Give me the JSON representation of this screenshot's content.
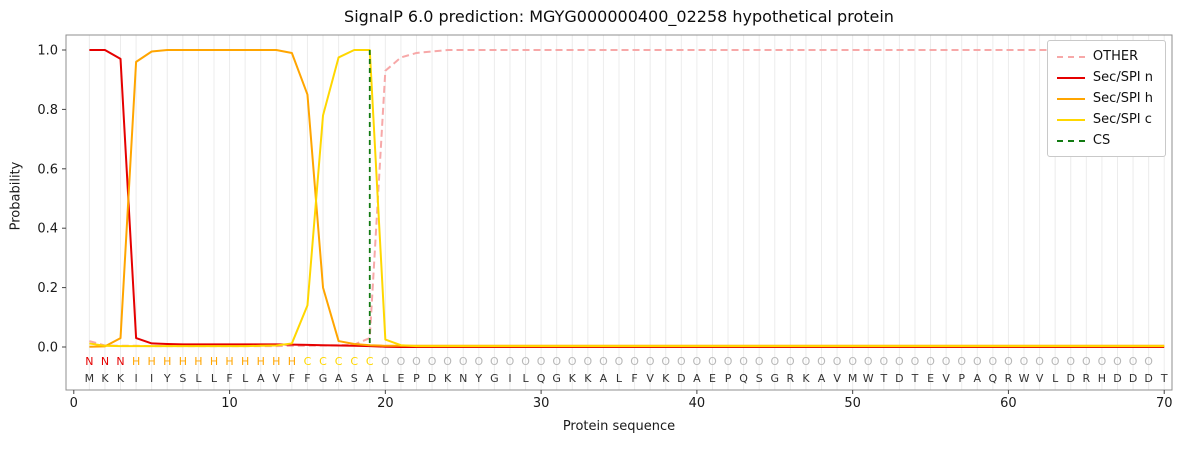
{
  "chart_data": {
    "type": "line",
    "title": "SignalP 6.0 prediction: MGYG000000400_02258 hypothetical protein",
    "xlabel": "Protein sequence",
    "ylabel": "Probability",
    "xlim": [
      -0.5,
      70.5
    ],
    "ylim": [
      0.0,
      1.05
    ],
    "xticks": [
      0,
      10,
      20,
      30,
      40,
      50,
      60,
      70
    ],
    "yticks": [
      0.0,
      0.2,
      0.4,
      0.6,
      0.8,
      1.0
    ],
    "grid": "vertical-line-per-residue",
    "positions": {
      "start": 1,
      "end": 70
    },
    "sequence": "MKKIIYSLLFLAVFFGASALEPDKNYGILQGKKALFVKDAEPQSGRKAVMWTDTEVPAQRWVLDRHDDDT",
    "region_labels": "NNNHHHHHHHHHHHCCCCCOOOOOOOOOOOOOOOOOOOOOOOOOOOOOOOOOOOOOOOOOOOOOOOOOO",
    "region_colors": {
      "N": "#e50000",
      "H": "#ffa500",
      "C": "#ffd700",
      "O": "#b8b8b8"
    },
    "sequence_letter_color": "#333333",
    "cs": {
      "label": "CS",
      "position": 19,
      "color": "#127a12",
      "dash": true
    },
    "series": [
      {
        "name": "OTHER",
        "color": "#f7a8a8",
        "dash": true,
        "values": [
          0.02,
          0.005,
          0.004,
          0.004,
          0.003,
          0.003,
          0.003,
          0.003,
          0.003,
          0.003,
          0.003,
          0.003,
          0.003,
          0.004,
          0.004,
          0.005,
          0.006,
          0.008,
          0.03,
          0.93,
          0.975,
          0.99,
          0.995,
          1.0,
          1.0,
          1.0,
          1.0,
          1.0,
          1.0,
          1.0,
          1.0,
          1.0,
          1.0,
          1.0,
          1.0,
          1.0,
          1.0,
          1.0,
          1.0,
          1.0,
          1.0,
          1.0,
          1.0,
          1.0,
          1.0,
          1.0,
          1.0,
          1.0,
          1.0,
          1.0,
          1.0,
          1.0,
          1.0,
          1.0,
          1.0,
          1.0,
          1.0,
          1.0,
          1.0,
          1.0,
          1.0,
          1.0,
          1.0,
          1.0,
          1.0,
          1.0,
          1.0,
          1.0,
          1.0,
          1.0
        ]
      },
      {
        "name": "Sec/SPI n",
        "color": "#e50000",
        "dash": false,
        "values": [
          1.0,
          1.0,
          0.97,
          0.03,
          0.012,
          0.01,
          0.009,
          0.009,
          0.009,
          0.009,
          0.009,
          0.009,
          0.009,
          0.008,
          0.007,
          0.006,
          0.005,
          0.004,
          0.003,
          0.001,
          0.0,
          0.0,
          0.0,
          0.0,
          0.0,
          0.0,
          0.0,
          0.0,
          0.0,
          0.0,
          0.0,
          0.0,
          0.0,
          0.0,
          0.0,
          0.0,
          0.0,
          0.0,
          0.0,
          0.0,
          0.0,
          0.0,
          0.0,
          0.0,
          0.0,
          0.0,
          0.0,
          0.0,
          0.0,
          0.0,
          0.0,
          0.0,
          0.0,
          0.0,
          0.0,
          0.0,
          0.0,
          0.0,
          0.0,
          0.0,
          0.0,
          0.0,
          0.0,
          0.0,
          0.0,
          0.0,
          0.0,
          0.0,
          0.0,
          0.0
        ]
      },
      {
        "name": "Sec/SPI h",
        "color": "#ffa500",
        "dash": false,
        "values": [
          0.001,
          0.002,
          0.03,
          0.96,
          0.995,
          1.0,
          1.0,
          1.0,
          1.0,
          1.0,
          1.0,
          1.0,
          1.0,
          0.99,
          0.85,
          0.2,
          0.02,
          0.01,
          0.006,
          0.004,
          0.004,
          0.004,
          0.004,
          0.004,
          0.004,
          0.004,
          0.004,
          0.004,
          0.004,
          0.004,
          0.004,
          0.004,
          0.004,
          0.004,
          0.004,
          0.004,
          0.004,
          0.004,
          0.004,
          0.004,
          0.004,
          0.004,
          0.004,
          0.004,
          0.004,
          0.004,
          0.004,
          0.004,
          0.004,
          0.004,
          0.004,
          0.004,
          0.004,
          0.004,
          0.004,
          0.004,
          0.004,
          0.004,
          0.004,
          0.004,
          0.004,
          0.004,
          0.004,
          0.004,
          0.004,
          0.004,
          0.004,
          0.004,
          0.004,
          0.004
        ]
      },
      {
        "name": "Sec/SPI c",
        "color": "#ffd700",
        "dash": false,
        "values": [
          0.012,
          0.004,
          0.003,
          0.003,
          0.003,
          0.003,
          0.003,
          0.003,
          0.003,
          0.003,
          0.003,
          0.004,
          0.005,
          0.012,
          0.14,
          0.78,
          0.975,
          1.0,
          1.0,
          0.025,
          0.006,
          0.003,
          0.003,
          0.003,
          0.003,
          0.003,
          0.003,
          0.003,
          0.003,
          0.003,
          0.003,
          0.003,
          0.003,
          0.003,
          0.003,
          0.003,
          0.003,
          0.003,
          0.003,
          0.003,
          0.003,
          0.003,
          0.003,
          0.003,
          0.003,
          0.003,
          0.003,
          0.003,
          0.003,
          0.003,
          0.003,
          0.003,
          0.003,
          0.003,
          0.003,
          0.003,
          0.003,
          0.003,
          0.003,
          0.003,
          0.003,
          0.003,
          0.003,
          0.003,
          0.003,
          0.003,
          0.003,
          0.003,
          0.003,
          0.003
        ]
      }
    ],
    "legend": [
      {
        "label": "OTHER",
        "color": "#f7a8a8",
        "dash": true
      },
      {
        "label": "Sec/SPI n",
        "color": "#e50000",
        "dash": false
      },
      {
        "label": "Sec/SPI h",
        "color": "#ffa500",
        "dash": false
      },
      {
        "label": "Sec/SPI c",
        "color": "#ffd700",
        "dash": false
      },
      {
        "label": "CS",
        "color": "#127a12",
        "dash": true
      }
    ]
  }
}
